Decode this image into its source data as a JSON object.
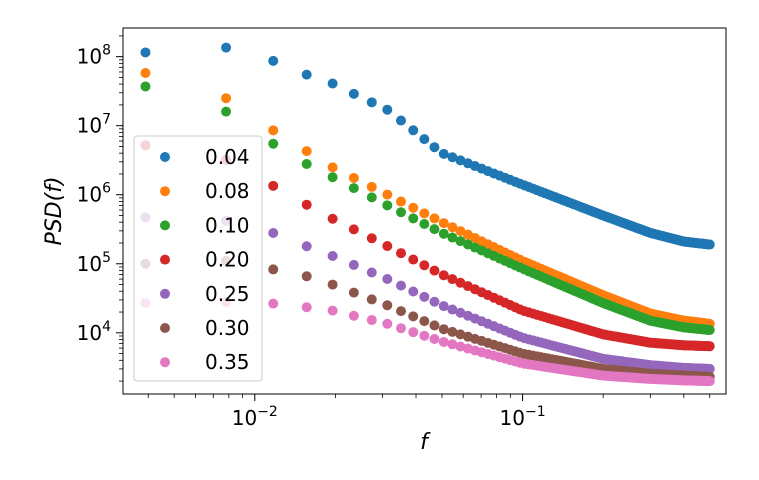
{
  "chart_data": {
    "type": "scatter",
    "title": "",
    "xlabel": "f",
    "ylabel": "PSD(f)",
    "xscale": "log",
    "yscale": "log",
    "xlim": [
      0.00322,
      0.575
    ],
    "ylim": [
      1300,
      260000000
    ],
    "grid": false,
    "legend_position": "center-left",
    "x_ticks": [
      {
        "value": 0.01,
        "base": "10",
        "exp": "−2"
      },
      {
        "value": 0.1,
        "base": "10",
        "exp": "−1"
      }
    ],
    "y_ticks": [
      {
        "value": 10000,
        "base": "10",
        "exp": "4"
      },
      {
        "value": 100000,
        "base": "10",
        "exp": "5"
      },
      {
        "value": 1000000,
        "base": "10",
        "exp": "6"
      },
      {
        "value": 10000000,
        "base": "10",
        "exp": "7"
      },
      {
        "value": 100000000,
        "base": "10",
        "exp": "8"
      }
    ],
    "x_grid": {
      "f0": 0.00390625,
      "df": 0.00390625,
      "n": 128
    },
    "series": [
      {
        "name": "0.04",
        "color": "#1f77b4",
        "anchors": [
          [
            0.00390625,
            115000000
          ],
          [
            0.0078125,
            135000000
          ],
          [
            0.0117,
            87000000
          ],
          [
            0.0156,
            55000000
          ],
          [
            0.0195,
            41000000
          ],
          [
            0.0234,
            29000000
          ],
          [
            0.0313,
            17000000
          ],
          [
            0.05,
            4000000
          ],
          [
            0.1,
            1400000
          ],
          [
            0.2,
            500000
          ],
          [
            0.3,
            280000
          ],
          [
            0.4,
            210000
          ],
          [
            0.5,
            190000
          ]
        ]
      },
      {
        "name": "0.08",
        "color": "#ff7f0e",
        "anchors": [
          [
            0.00390625,
            58000000
          ],
          [
            0.0078125,
            25000000
          ],
          [
            0.0117,
            8600000
          ],
          [
            0.0156,
            4300000
          ],
          [
            0.0195,
            2500000
          ],
          [
            0.0313,
            1000000
          ],
          [
            0.05,
            400000
          ],
          [
            0.1,
            110000
          ],
          [
            0.2,
            35000
          ],
          [
            0.3,
            19000
          ],
          [
            0.4,
            15000
          ],
          [
            0.5,
            13500
          ]
        ]
      },
      {
        "name": "0.10",
        "color": "#2ca02c",
        "anchors": [
          [
            0.00390625,
            37000000
          ],
          [
            0.0078125,
            16000000
          ],
          [
            0.0117,
            5500000
          ],
          [
            0.0156,
            2800000
          ],
          [
            0.0195,
            1800000
          ],
          [
            0.0313,
            700000
          ],
          [
            0.05,
            280000
          ],
          [
            0.1,
            85000
          ],
          [
            0.2,
            27000
          ],
          [
            0.3,
            15000
          ],
          [
            0.4,
            12000
          ],
          [
            0.5,
            11000
          ]
        ]
      },
      {
        "name": "0.20",
        "color": "#d62728",
        "anchors": [
          [
            0.00390625,
            5200000
          ],
          [
            0.0078125,
            3200000
          ],
          [
            0.0117,
            1350000
          ],
          [
            0.0156,
            720000
          ],
          [
            0.0195,
            450000
          ],
          [
            0.0313,
            180000
          ],
          [
            0.05,
            70000
          ],
          [
            0.1,
            21000
          ],
          [
            0.2,
            9500
          ],
          [
            0.3,
            7200
          ],
          [
            0.4,
            6600
          ],
          [
            0.5,
            6400
          ]
        ]
      },
      {
        "name": "0.25",
        "color": "#9467bd",
        "anchors": [
          [
            0.00390625,
            470000
          ],
          [
            0.0078125,
            420000
          ],
          [
            0.0117,
            280000
          ],
          [
            0.0156,
            180000
          ],
          [
            0.0195,
            130000
          ],
          [
            0.0313,
            60000
          ],
          [
            0.05,
            25000
          ],
          [
            0.1,
            8500
          ],
          [
            0.2,
            4200
          ],
          [
            0.3,
            3400
          ],
          [
            0.4,
            3100
          ],
          [
            0.5,
            3000
          ]
        ]
      },
      {
        "name": "0.30",
        "color": "#8c564b",
        "anchors": [
          [
            0.00390625,
            100000
          ],
          [
            0.0078125,
            110000
          ],
          [
            0.0117,
            83000
          ],
          [
            0.0156,
            66000
          ],
          [
            0.0195,
            50000
          ],
          [
            0.0313,
            25000
          ],
          [
            0.05,
            11500
          ],
          [
            0.1,
            5000
          ],
          [
            0.2,
            3000
          ],
          [
            0.3,
            2550
          ],
          [
            0.4,
            2400
          ],
          [
            0.5,
            2300
          ]
        ]
      },
      {
        "name": "0.35",
        "color": "#e377c2",
        "anchors": [
          [
            0.00390625,
            27000
          ],
          [
            0.0078125,
            28000
          ],
          [
            0.0117,
            26500
          ],
          [
            0.0156,
            23500
          ],
          [
            0.0195,
            21000
          ],
          [
            0.0313,
            13500
          ],
          [
            0.05,
            7500
          ],
          [
            0.1,
            3600
          ],
          [
            0.2,
            2400
          ],
          [
            0.3,
            2150
          ],
          [
            0.4,
            2050
          ],
          [
            0.5,
            2000
          ]
        ]
      }
    ]
  }
}
